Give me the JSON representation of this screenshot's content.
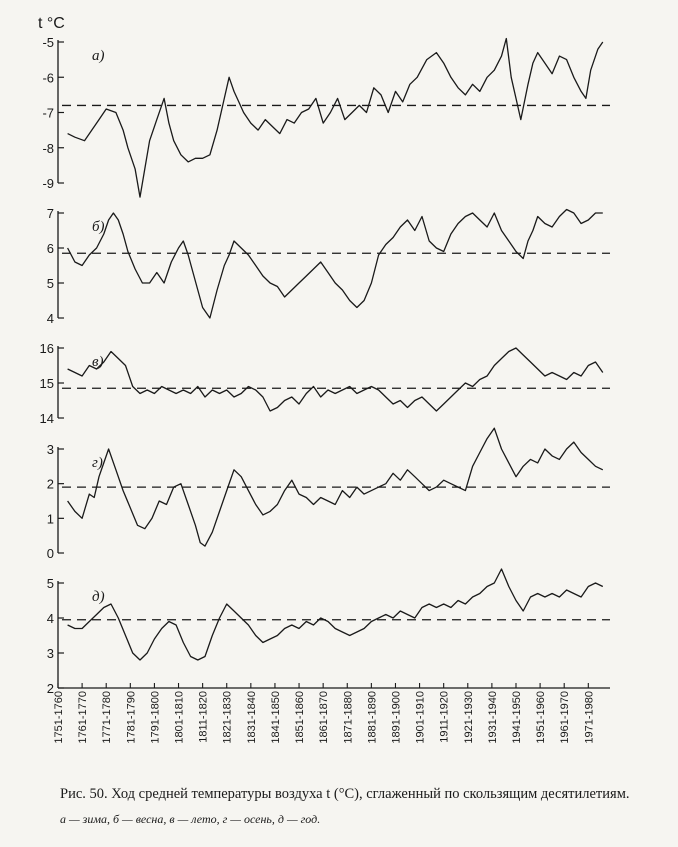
{
  "unit_label": "t °C",
  "caption": {
    "text": "Рис. 50. Ход средней температуры воздуха t (°C), сглаженный по скользящим десятилетиям.",
    "legend": "а — зима, б — весна, в — лето, г — осень, д — год."
  },
  "colors": {
    "line": "#1a1a1a",
    "background": "#f6f5f1"
  },
  "chart_data": [
    {
      "type": "line",
      "panel": "а)",
      "ylim": [
        -9,
        -5
      ],
      "yticks": [
        "-5",
        "-6",
        "-7",
        "-8",
        "-9"
      ],
      "reference_line": -6.8,
      "x": [
        1755,
        1758,
        1762,
        1766,
        1768,
        1771,
        1775,
        1778,
        1780,
        1783,
        1785,
        1787,
        1789,
        1792,
        1795,
        1797,
        1799,
        1802,
        1805,
        1808,
        1811,
        1814,
        1817,
        1820,
        1822,
        1824,
        1826,
        1828,
        1831,
        1834,
        1837,
        1840,
        1843,
        1846,
        1849,
        1852,
        1855,
        1858,
        1861,
        1864,
        1867,
        1870,
        1873,
        1876,
        1879,
        1882,
        1885,
        1888,
        1891,
        1894,
        1897,
        1900,
        1904,
        1908,
        1911,
        1914,
        1917,
        1920,
        1923,
        1926,
        1929,
        1932,
        1935,
        1937,
        1939,
        1941,
        1943,
        1946,
        1948,
        1950,
        1953,
        1956,
        1959,
        1962,
        1965,
        1968,
        1970,
        1972,
        1975,
        1977
      ],
      "values": [
        -7.6,
        -7.7,
        -7.8,
        -7.4,
        -7.2,
        -6.9,
        -7.0,
        -7.5,
        -8.0,
        -8.6,
        -9.4,
        -8.6,
        -7.8,
        -7.2,
        -6.6,
        -7.3,
        -7.8,
        -8.2,
        -8.4,
        -8.3,
        -8.3,
        -8.2,
        -7.5,
        -6.6,
        -6.0,
        -6.4,
        -6.7,
        -7.0,
        -7.3,
        -7.5,
        -7.2,
        -7.4,
        -7.6,
        -7.2,
        -7.3,
        -7.0,
        -6.9,
        -6.6,
        -7.3,
        -7.0,
        -6.6,
        -7.2,
        -7.0,
        -6.8,
        -7.0,
        -6.3,
        -6.5,
        -7.0,
        -6.4,
        -6.7,
        -6.2,
        -6.0,
        -5.5,
        -5.3,
        -5.6,
        -6.0,
        -6.3,
        -6.5,
        -6.2,
        -6.4,
        -6.0,
        -5.8,
        -5.4,
        -4.9,
        -6.0,
        -6.6,
        -7.2,
        -6.2,
        -5.6,
        -5.3,
        -5.6,
        -5.9,
        -5.4,
        -5.5,
        -6.0,
        -6.4,
        -6.6,
        -5.8,
        -5.2,
        -5.0
      ]
    },
    {
      "type": "line",
      "panel": "б)",
      "ylim": [
        4,
        7
      ],
      "yticks": [
        "7",
        "6",
        "5",
        "4"
      ],
      "reference_line": 5.85,
      "x": [
        1755,
        1758,
        1761,
        1764,
        1767,
        1770,
        1772,
        1774,
        1776,
        1778,
        1780,
        1783,
        1786,
        1789,
        1792,
        1795,
        1798,
        1801,
        1803,
        1805,
        1807,
        1809,
        1811,
        1814,
        1817,
        1820,
        1822,
        1824,
        1827,
        1830,
        1833,
        1836,
        1839,
        1842,
        1845,
        1848,
        1851,
        1854,
        1857,
        1860,
        1863,
        1866,
        1869,
        1872,
        1875,
        1878,
        1881,
        1884,
        1887,
        1890,
        1893,
        1896,
        1899,
        1902,
        1905,
        1908,
        1911,
        1914,
        1917,
        1920,
        1923,
        1926,
        1929,
        1932,
        1935,
        1938,
        1941,
        1944,
        1946,
        1948,
        1950,
        1953,
        1956,
        1959,
        1962,
        1965,
        1968,
        1971,
        1974,
        1977
      ],
      "values": [
        6.0,
        5.6,
        5.5,
        5.8,
        6.0,
        6.4,
        6.8,
        7.0,
        6.8,
        6.4,
        5.9,
        5.4,
        5.0,
        5.0,
        5.3,
        5.0,
        5.6,
        6.0,
        6.2,
        5.8,
        5.3,
        4.8,
        4.3,
        4.0,
        4.8,
        5.5,
        5.8,
        6.2,
        6.0,
        5.8,
        5.5,
        5.2,
        5.0,
        4.9,
        4.6,
        4.8,
        5.0,
        5.2,
        5.4,
        5.6,
        5.3,
        5.0,
        4.8,
        4.5,
        4.3,
        4.5,
        5.0,
        5.8,
        6.1,
        6.3,
        6.6,
        6.8,
        6.5,
        6.9,
        6.2,
        6.0,
        5.9,
        6.4,
        6.7,
        6.9,
        7.0,
        6.8,
        6.6,
        7.0,
        6.5,
        6.2,
        5.9,
        5.7,
        6.2,
        6.5,
        6.9,
        6.7,
        6.6,
        6.9,
        7.1,
        7.0,
        6.7,
        6.8,
        7.0,
        7.0
      ]
    },
    {
      "type": "line",
      "panel": "в)",
      "ylim": [
        14,
        16
      ],
      "yticks": [
        "16",
        "15",
        "14"
      ],
      "reference_line": 14.85,
      "x": [
        1755,
        1758,
        1761,
        1764,
        1767,
        1770,
        1773,
        1776,
        1779,
        1782,
        1785,
        1788,
        1791,
        1794,
        1797,
        1800,
        1803,
        1806,
        1809,
        1812,
        1815,
        1818,
        1821,
        1824,
        1827,
        1830,
        1833,
        1836,
        1839,
        1842,
        1845,
        1848,
        1851,
        1854,
        1857,
        1860,
        1863,
        1866,
        1869,
        1872,
        1875,
        1878,
        1881,
        1884,
        1887,
        1890,
        1893,
        1896,
        1899,
        1902,
        1905,
        1908,
        1911,
        1914,
        1917,
        1920,
        1923,
        1926,
        1929,
        1932,
        1935,
        1938,
        1941,
        1944,
        1947,
        1950,
        1953,
        1956,
        1959,
        1962,
        1965,
        1968,
        1971,
        1974,
        1977
      ],
      "values": [
        15.4,
        15.3,
        15.2,
        15.5,
        15.4,
        15.6,
        15.9,
        15.7,
        15.5,
        14.9,
        14.7,
        14.8,
        14.7,
        14.9,
        14.8,
        14.7,
        14.8,
        14.7,
        14.9,
        14.6,
        14.8,
        14.7,
        14.8,
        14.6,
        14.7,
        14.9,
        14.8,
        14.6,
        14.2,
        14.3,
        14.5,
        14.6,
        14.4,
        14.7,
        14.9,
        14.6,
        14.8,
        14.7,
        14.8,
        14.9,
        14.7,
        14.8,
        14.9,
        14.8,
        14.6,
        14.4,
        14.5,
        14.3,
        14.5,
        14.6,
        14.4,
        14.2,
        14.4,
        14.6,
        14.8,
        15.0,
        14.9,
        15.1,
        15.2,
        15.5,
        15.7,
        15.9,
        16.0,
        15.8,
        15.6,
        15.4,
        15.2,
        15.3,
        15.2,
        15.1,
        15.3,
        15.2,
        15.5,
        15.6,
        15.3
      ]
    },
    {
      "type": "line",
      "panel": "г)",
      "ylim": [
        0,
        3
      ],
      "yticks": [
        "3",
        "2",
        "1",
        "0"
      ],
      "reference_line": 1.9,
      "x": [
        1755,
        1758,
        1761,
        1764,
        1766,
        1768,
        1770,
        1772,
        1775,
        1778,
        1781,
        1784,
        1787,
        1790,
        1793,
        1796,
        1799,
        1802,
        1805,
        1808,
        1810,
        1812,
        1815,
        1818,
        1821,
        1824,
        1827,
        1830,
        1833,
        1836,
        1839,
        1842,
        1845,
        1848,
        1851,
        1854,
        1857,
        1860,
        1863,
        1866,
        1869,
        1872,
        1875,
        1878,
        1881,
        1884,
        1887,
        1890,
        1893,
        1896,
        1899,
        1902,
        1905,
        1908,
        1911,
        1914,
        1917,
        1920,
        1923,
        1926,
        1929,
        1932,
        1935,
        1938,
        1941,
        1944,
        1947,
        1950,
        1953,
        1956,
        1959,
        1962,
        1965,
        1968,
        1971,
        1974,
        1977
      ],
      "values": [
        1.5,
        1.2,
        1.0,
        1.7,
        1.6,
        2.2,
        2.6,
        3.0,
        2.4,
        1.8,
        1.3,
        0.8,
        0.7,
        1.0,
        1.5,
        1.4,
        1.9,
        2.0,
        1.4,
        0.8,
        0.3,
        0.2,
        0.6,
        1.2,
        1.8,
        2.4,
        2.2,
        1.8,
        1.4,
        1.1,
        1.2,
        1.4,
        1.8,
        2.1,
        1.7,
        1.6,
        1.4,
        1.6,
        1.5,
        1.4,
        1.8,
        1.6,
        1.9,
        1.7,
        1.8,
        1.9,
        2.0,
        2.3,
        2.1,
        2.4,
        2.2,
        2.0,
        1.8,
        1.9,
        2.1,
        2.0,
        1.9,
        1.8,
        2.5,
        2.9,
        3.3,
        3.6,
        3.0,
        2.6,
        2.2,
        2.5,
        2.7,
        2.6,
        3.0,
        2.8,
        2.7,
        3.0,
        3.2,
        2.9,
        2.7,
        2.5,
        2.4
      ]
    },
    {
      "type": "line",
      "panel": "д)",
      "ylim": [
        2,
        5
      ],
      "yticks": [
        "5",
        "4",
        "3",
        "2"
      ],
      "reference_line": 3.95,
      "x": [
        1755,
        1758,
        1761,
        1764,
        1767,
        1770,
        1773,
        1776,
        1779,
        1782,
        1785,
        1788,
        1791,
        1794,
        1797,
        1800,
        1803,
        1806,
        1809,
        1812,
        1815,
        1818,
        1821,
        1824,
        1827,
        1830,
        1833,
        1836,
        1839,
        1842,
        1845,
        1848,
        1851,
        1854,
        1857,
        1860,
        1863,
        1866,
        1869,
        1872,
        1875,
        1878,
        1881,
        1884,
        1887,
        1890,
        1893,
        1896,
        1899,
        1902,
        1905,
        1908,
        1911,
        1914,
        1917,
        1920,
        1923,
        1926,
        1929,
        1932,
        1935,
        1938,
        1941,
        1944,
        1947,
        1950,
        1953,
        1956,
        1959,
        1962,
        1965,
        1968,
        1971,
        1974,
        1977
      ],
      "values": [
        3.8,
        3.7,
        3.7,
        3.9,
        4.1,
        4.3,
        4.4,
        4.0,
        3.5,
        3.0,
        2.8,
        3.0,
        3.4,
        3.7,
        3.9,
        3.8,
        3.3,
        2.9,
        2.8,
        2.9,
        3.5,
        4.0,
        4.4,
        4.2,
        4.0,
        3.8,
        3.5,
        3.3,
        3.4,
        3.5,
        3.7,
        3.8,
        3.7,
        3.9,
        3.8,
        4.0,
        3.9,
        3.7,
        3.6,
        3.5,
        3.6,
        3.7,
        3.9,
        4.0,
        4.1,
        4.0,
        4.2,
        4.1,
        4.0,
        4.3,
        4.4,
        4.3,
        4.4,
        4.3,
        4.5,
        4.4,
        4.6,
        4.7,
        4.9,
        5.0,
        5.4,
        4.9,
        4.5,
        4.2,
        4.6,
        4.7,
        4.6,
        4.7,
        4.6,
        4.8,
        4.7,
        4.6,
        4.9,
        5.0,
        4.9
      ]
    }
  ],
  "x_axis": {
    "xlim": [
      1751,
      1980
    ],
    "tick_labels": [
      "1751-1760",
      "1761-1770",
      "1771-1780",
      "1781-1790",
      "1791-1800",
      "1801-1810",
      "1811-1820",
      "1821-1830",
      "1831-1840",
      "1841-1850",
      "1851-1860",
      "1861-1870",
      "1871-1880",
      "1881-1890",
      "1891-1900",
      "1901-1910",
      "1911-1920",
      "1921-1930",
      "1931-1940",
      "1941-1950",
      "1951-1960",
      "1961-1970",
      "1971-1980"
    ]
  }
}
